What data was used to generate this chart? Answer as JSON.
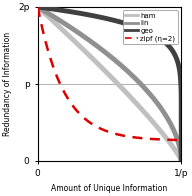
{
  "title": "",
  "xlabel": "Amount of Unique Information",
  "ylabel": "Redundancy of Information",
  "xlim": [
    0,
    1
  ],
  "ylim": [
    0,
    1
  ],
  "xticks": [
    0,
    1
  ],
  "xticklabels": [
    "0",
    "1/p"
  ],
  "yticks": [
    0,
    0.5,
    1
  ],
  "yticklabels": [
    "0",
    "p",
    "2p"
  ],
  "hline_y": 0.5,
  "color_ham": "#c0c0c0",
  "color_lin": "#909090",
  "color_geo": "#404040",
  "color_zipf": "#dd0000",
  "background_color": "#ffffff",
  "figsize": [
    1.92,
    1.96
  ],
  "dpi": 100
}
